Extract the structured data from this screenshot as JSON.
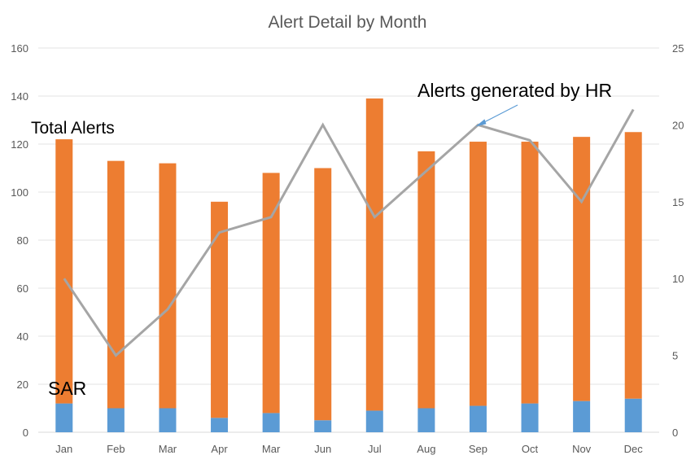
{
  "chart_data": {
    "type": "bar",
    "title": "Alert Detail by Month",
    "categories": [
      "Jan",
      "Feb",
      "Mar",
      "Apr",
      "Mar",
      "Jun",
      "Jul",
      "Aug",
      "Sep",
      "Oct",
      "Nov",
      "Dec"
    ],
    "stacked": true,
    "series": [
      {
        "name": "SAR",
        "type": "bar",
        "axis": "left",
        "values": [
          12,
          10,
          10,
          6,
          8,
          5,
          9,
          10,
          11,
          12,
          13,
          14
        ]
      },
      {
        "name": "Total Alerts",
        "type": "bar",
        "axis": "left",
        "values": [
          110,
          103,
          102,
          90,
          100,
          105,
          130,
          107,
          110,
          109,
          110,
          111
        ]
      },
      {
        "name": "Alerts generated by HR",
        "type": "line",
        "axis": "right",
        "values": [
          10,
          5,
          8,
          13,
          14,
          20,
          14,
          17,
          20,
          19,
          15,
          21
        ]
      }
    ],
    "ylim_left": [
      0,
      160
    ],
    "yticks_left": [
      0,
      20,
      40,
      60,
      80,
      100,
      120,
      140,
      160
    ],
    "ylim_right": [
      0,
      25
    ],
    "yticks_right": [
      0,
      5,
      10,
      15,
      20,
      25
    ],
    "grid": true,
    "colors": {
      "sar": "#5b9bd5",
      "total": "#ed7d31",
      "line": "#a5a5a5",
      "arrow": "#5b9bd5"
    },
    "annotations": [
      {
        "text": "Total Alerts",
        "points_to": "bars"
      },
      {
        "text": "Alerts generated by HR",
        "points_to": "Sep"
      },
      {
        "text": "SAR",
        "points_to": "bars"
      }
    ]
  }
}
